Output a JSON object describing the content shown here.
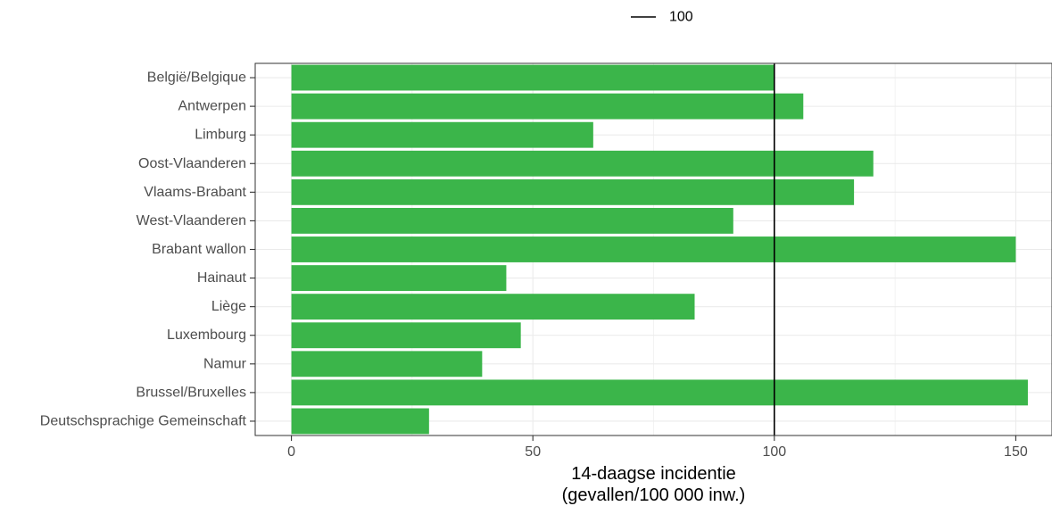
{
  "chart_data": {
    "type": "bar",
    "orientation": "horizontal",
    "categories": [
      "België/Belgique",
      "Antwerpen",
      "Limburg",
      "Oost-Vlaanderen",
      "Vlaams-Brabant",
      "West-Vlaanderen",
      "Brabant wallon",
      "Hainaut",
      "Liège",
      "Luxembourg",
      "Namur",
      "Brussel/Bruxelles",
      "Deutschsprachige Gemeinschaft"
    ],
    "values": [
      100,
      106,
      62.5,
      120.5,
      116.5,
      91.5,
      150,
      44.5,
      83.5,
      47.5,
      39.5,
      152.5,
      28.5
    ],
    "xlabel_line1": "14-daagse incidentie",
    "xlabel_line2": "(gevallen/100 000 inw.)",
    "ylabel": "",
    "xlim": [
      -7.5,
      157.5
    ],
    "xticks": [
      0,
      50,
      100,
      150
    ],
    "xtick_labels": [
      "0",
      "50",
      "100",
      "150"
    ],
    "grid": true,
    "reference_line": {
      "value": 100,
      "color": "#000000"
    },
    "legend": {
      "position": "top",
      "entries": [
        {
          "label": "100"
        }
      ]
    },
    "colors": {
      "bar": "#3bb54a",
      "grid": "#ebebeb",
      "panel_border": "#333333"
    }
  }
}
